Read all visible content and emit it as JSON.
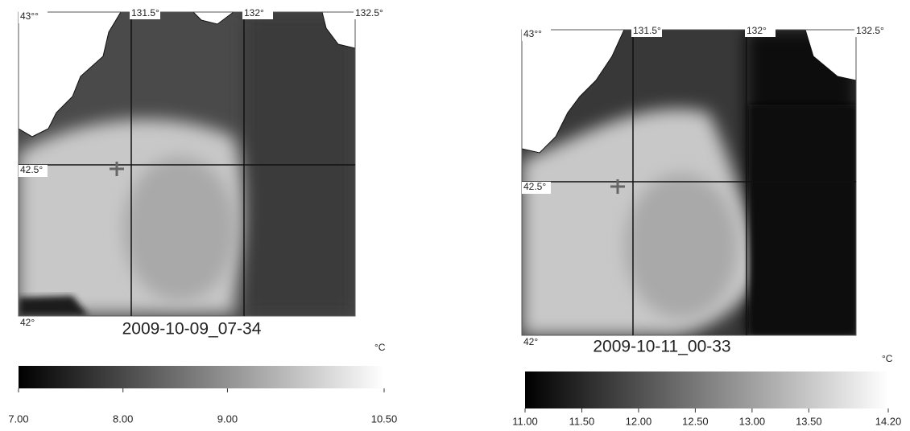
{
  "panels": [
    {
      "title": "2009-10-09_07-34",
      "lon_labels": [
        "131.5°",
        "132°",
        "132.5°"
      ],
      "lat_labels": [
        "43°°",
        "42.5°",
        "42°"
      ],
      "unit": "°C",
      "colorbar": {
        "ticks": [
          {
            "value": 7,
            "label": "7.00"
          },
          {
            "value": 8,
            "label": "8.00"
          },
          {
            "value": 9,
            "label": "9.00"
          },
          {
            "value": 10.5,
            "label": "10.50"
          }
        ]
      }
    },
    {
      "title": "2009-10-11_00-33",
      "lon_labels": [
        "131.5°",
        "132°",
        "132.5°"
      ],
      "lat_labels": [
        "43°°",
        "42.5°",
        "42°"
      ],
      "unit": "°C",
      "colorbar": {
        "ticks": [
          {
            "value": 11,
            "label": "11.00"
          },
          {
            "value": 11.5,
            "label": "11.50"
          },
          {
            "value": 12,
            "label": "12.00"
          },
          {
            "value": 12.5,
            "label": "12.50"
          },
          {
            "value": 13,
            "label": "13.00"
          },
          {
            "value": 13.5,
            "label": "13.50"
          },
          {
            "value": 14.2,
            "label": "14.20"
          }
        ]
      }
    }
  ]
}
